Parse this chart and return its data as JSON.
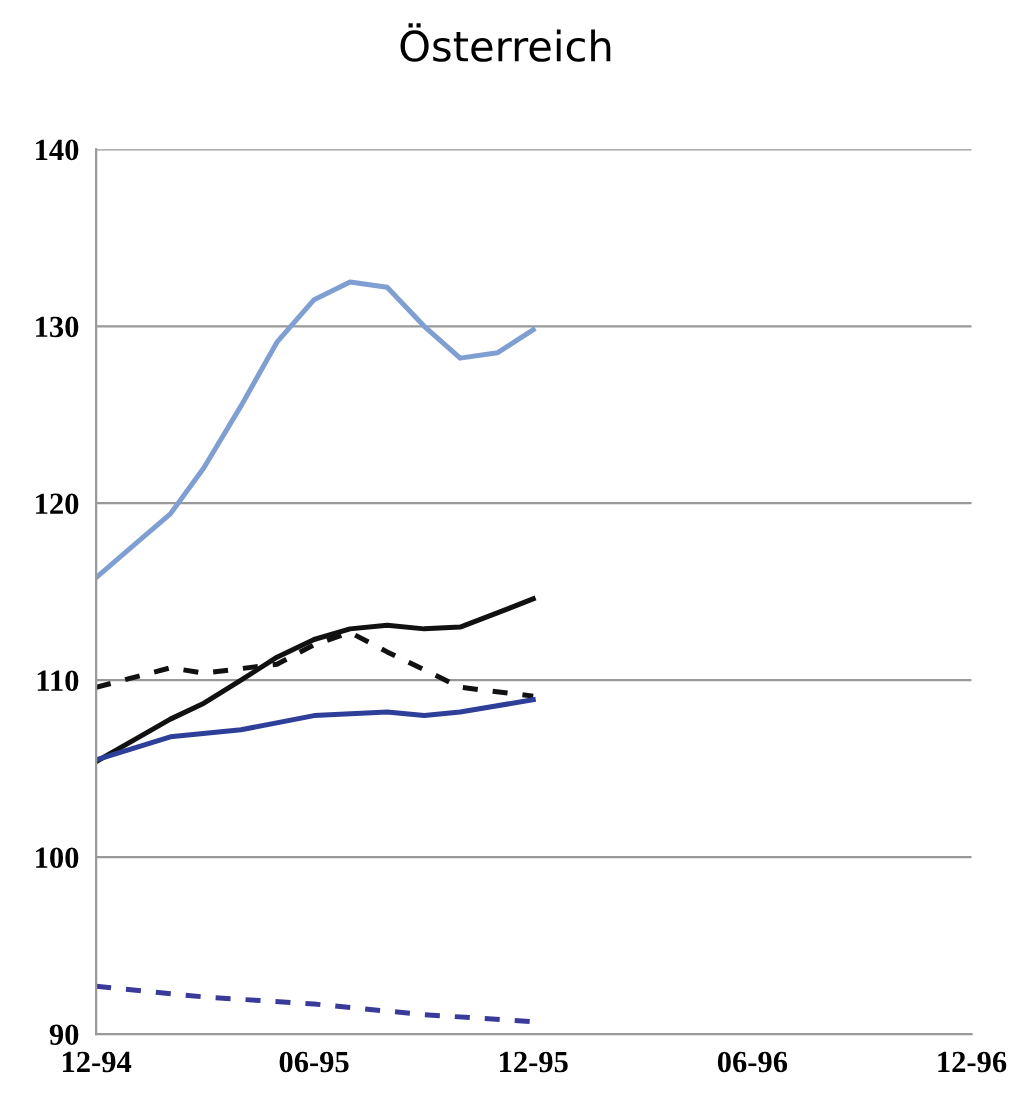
{
  "chart_data": {
    "type": "line",
    "title": "Österreich",
    "xlim": [
      "1994-12",
      "1996-12"
    ],
    "xticks": [
      {
        "value": "1994-12",
        "label": "12-94"
      },
      {
        "value": "1995-06",
        "label": "06-95"
      },
      {
        "value": "1995-12",
        "label": "12-95"
      },
      {
        "value": "1996-06",
        "label": "06-96"
      },
      {
        "value": "1996-12",
        "label": "12-96"
      }
    ],
    "ylim": [
      90,
      140
    ],
    "yticks": [
      90,
      100,
      110,
      120,
      130,
      140
    ],
    "grid": "y",
    "marker": "none",
    "series": [
      {
        "color": "#7f9fd3",
        "line_style": "solid",
        "x": [
          "1994-12",
          "1995-01",
          "1995-02",
          "1995-03",
          "1995-04",
          "1995-05",
          "1995-06",
          "1995-07",
          "1995-08",
          "1995-09",
          "1995-10",
          "1995-11",
          "1995-12"
        ],
        "values": [
          115.8,
          117.6,
          119.4,
          122,
          125.5,
          129.1,
          131.5,
          132.5,
          132.2,
          130,
          128.2,
          128.5,
          129.8
        ]
      },
      {
        "color": "#111111",
        "line_style": "solid",
        "x": [
          "1994-12",
          "1995-01",
          "1995-02",
          "1995-03",
          "1995-04",
          "1995-05",
          "1995-06",
          "1995-07",
          "1995-08",
          "1995-09",
          "1995-10",
          "1995-11",
          "1995-12"
        ],
        "values": [
          105.4,
          106.6,
          107.8,
          108.7,
          110,
          111.3,
          112.3,
          112.9,
          113.1,
          112.9,
          113,
          113.8,
          114.6
        ]
      },
      {
        "color": "#111111",
        "line_style": "dashed",
        "x": [
          "1994-12",
          "1995-02",
          "1995-03",
          "1995-05",
          "1995-06",
          "1995-07",
          "1995-08",
          "1995-10",
          "1995-12"
        ],
        "values": [
          109.6,
          110.7,
          110.4,
          110.9,
          112,
          112.7,
          111.6,
          109.6,
          109.1
        ]
      },
      {
        "color": "#2e3f9a",
        "line_style": "solid",
        "x": [
          "1994-12",
          "1995-02",
          "1995-04",
          "1995-06",
          "1995-08",
          "1995-09",
          "1995-10",
          "1995-12"
        ],
        "values": [
          105.5,
          106.8,
          107.2,
          108,
          108.2,
          108,
          108.2,
          108.9
        ]
      },
      {
        "color": "#3a3a9a",
        "line_style": "dashed",
        "x": [
          "1994-12",
          "1995-03",
          "1995-06",
          "1995-09",
          "1995-12"
        ],
        "values": [
          92.7,
          92.1,
          91.7,
          91.1,
          90.7
        ]
      }
    ]
  }
}
